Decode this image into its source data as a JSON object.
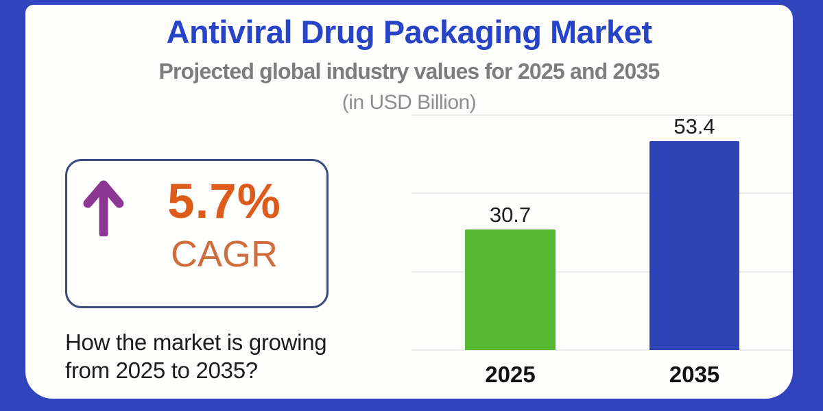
{
  "title": "Antiviral Drug Packaging Market",
  "subtitle": "Projected global industry values for 2025 and 2035",
  "unit_note": "(in USD Billion)",
  "cagr": {
    "icon": "up-arrow-icon",
    "value": "5.7%",
    "label": "CAGR"
  },
  "question": {
    "line1": "How the market is growing",
    "line2": "from 2025 to 2035?"
  },
  "chart_data": {
    "type": "bar",
    "title": "Antiviral Drug Packaging Market",
    "subtitle": "Projected global industry values for 2025 and 2035",
    "unit": "USD Billion",
    "categories": [
      "2025",
      "2035"
    ],
    "values": [
      30.7,
      53.4
    ],
    "value_labels": [
      "30.7",
      "53.4"
    ],
    "bar_colors": [
      "#58ba32",
      "#2e44b8"
    ],
    "ylim": [
      0,
      60
    ],
    "gridline_values": [
      0,
      20,
      40,
      60
    ],
    "grid": "horizontal",
    "legend_position": "none",
    "xlabel": "",
    "ylabel": ""
  },
  "colors": {
    "frame_blue": "#3143bd",
    "panel_white": "#fdfdfc",
    "title_blue": "#2744c7",
    "subtitle_gray": "#7d7d7d",
    "unit_gray": "#8e8e8e",
    "cagr_box_border": "#3c4b7d",
    "arrow_purple": "#8d3795",
    "cagr_value_orange": "#dd5c1c",
    "cagr_label_orange": "#cf6e3d",
    "question_text": "#1d1d1d",
    "gridline": "#ebebeb"
  }
}
